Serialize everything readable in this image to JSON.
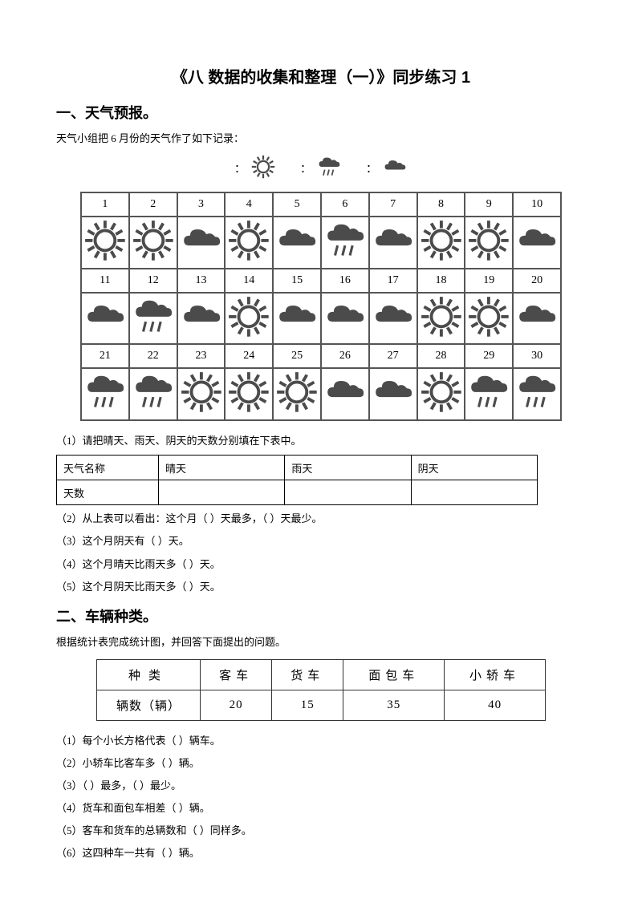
{
  "title": "《八 数据的收集和整理（一）》同步练习 1",
  "section1": {
    "heading": "一、天气预报。",
    "intro": "天气小组把 6 月份的天气作了如下记录：",
    "legend": {
      "label_sep": "："
    },
    "weather_types": {
      "sunny": "sunny",
      "rainy": "rainy",
      "cloudy": "cloudy"
    },
    "calendar": [
      {
        "d": "1",
        "w": "sunny"
      },
      {
        "d": "2",
        "w": "sunny"
      },
      {
        "d": "3",
        "w": "cloudy"
      },
      {
        "d": "4",
        "w": "sunny"
      },
      {
        "d": "5",
        "w": "cloudy"
      },
      {
        "d": "6",
        "w": "rainy"
      },
      {
        "d": "7",
        "w": "cloudy"
      },
      {
        "d": "8",
        "w": "sunny"
      },
      {
        "d": "9",
        "w": "sunny"
      },
      {
        "d": "10",
        "w": "cloudy"
      },
      {
        "d": "11",
        "w": "cloudy"
      },
      {
        "d": "12",
        "w": "rainy"
      },
      {
        "d": "13",
        "w": "cloudy"
      },
      {
        "d": "14",
        "w": "sunny"
      },
      {
        "d": "15",
        "w": "cloudy"
      },
      {
        "d": "16",
        "w": "cloudy"
      },
      {
        "d": "17",
        "w": "cloudy"
      },
      {
        "d": "18",
        "w": "sunny"
      },
      {
        "d": "19",
        "w": "sunny"
      },
      {
        "d": "20",
        "w": "cloudy"
      },
      {
        "d": "21",
        "w": "rainy"
      },
      {
        "d": "22",
        "w": "rainy"
      },
      {
        "d": "23",
        "w": "sunny"
      },
      {
        "d": "24",
        "w": "sunny"
      },
      {
        "d": "25",
        "w": "sunny"
      },
      {
        "d": "26",
        "w": "cloudy"
      },
      {
        "d": "27",
        "w": "cloudy"
      },
      {
        "d": "28",
        "w": "sunny"
      },
      {
        "d": "29",
        "w": "rainy"
      },
      {
        "d": "30",
        "w": "rainy"
      }
    ],
    "q1_prefix": "（1）请把晴天、雨天、阴天的天数分别填在下表中。",
    "answer_table": {
      "row1": {
        "c0": "天气名称",
        "c1": "晴天",
        "c2": "雨天",
        "c3": "阴天"
      },
      "row2": {
        "c0": "天数",
        "c1": "",
        "c2": "",
        "c3": ""
      }
    },
    "q2": "（2）从上表可以看出：这个月（ ）天最多，（ ）天最少。",
    "q3": "（3）这个月阴天有（ ）天。",
    "q4": "（4）这个月晴天比雨天多（ ）天。",
    "q5": "（5）这个月阴天比雨天多（ ）天。"
  },
  "section2": {
    "heading": "二、车辆种类。",
    "intro": "根据统计表完成统计图，并回答下面提出的问题。",
    "vehicle_table": {
      "head": {
        "c0": "种类",
        "c1": "客车",
        "c2": "货车",
        "c3": "面包车",
        "c4": "小轿车"
      },
      "row": {
        "c0": "辆数（辆）",
        "c1": "20",
        "c2": "15",
        "c3": "35",
        "c4": "40"
      }
    },
    "q1": "（1）每个小长方格代表（ ）辆车。",
    "q2": "（2）小轿车比客车多（ ）辆。",
    "q3": "（3）（ ）最多，（ ）最少。",
    "q4": "（4）货车和面包车相差（ ）辆。",
    "q5": "（5）客车和货车的总辆数和（ ）同样多。",
    "q6": "（6）这四种车一共有（ ）辆。"
  },
  "style": {
    "icon_fill": "#4b4b4b",
    "icon_stroke": "#3a3a3a",
    "border_color": "#555555"
  }
}
